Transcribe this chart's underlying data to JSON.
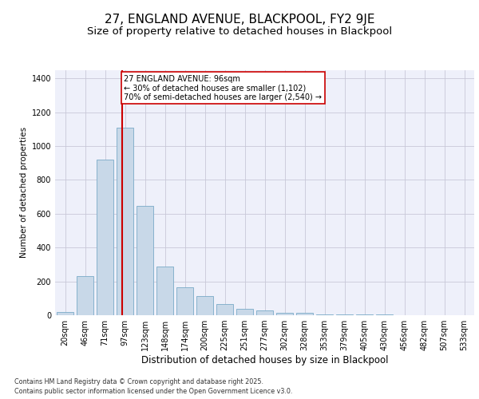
{
  "title": "27, ENGLAND AVENUE, BLACKPOOL, FY2 9JE",
  "subtitle": "Size of property relative to detached houses in Blackpool",
  "xlabel": "Distribution of detached houses by size in Blackpool",
  "ylabel": "Number of detached properties",
  "categories": [
    "20sqm",
    "46sqm",
    "71sqm",
    "97sqm",
    "123sqm",
    "148sqm",
    "174sqm",
    "200sqm",
    "225sqm",
    "251sqm",
    "277sqm",
    "302sqm",
    "328sqm",
    "353sqm",
    "379sqm",
    "405sqm",
    "430sqm",
    "456sqm",
    "482sqm",
    "507sqm",
    "533sqm"
  ],
  "bar_heights": [
    20,
    230,
    920,
    1110,
    645,
    290,
    165,
    115,
    65,
    40,
    30,
    15,
    12,
    5,
    5,
    5,
    5,
    0,
    0,
    0,
    0
  ],
  "bar_color": "#c8d8e8",
  "bar_edge_color": "#7aaac8",
  "annotation_box_color": "#cc0000",
  "vline_color": "#cc0000",
  "annotation_text": "27 ENGLAND AVENUE: 96sqm\n← 30% of detached houses are smaller (1,102)\n70% of semi-detached houses are larger (2,540) →",
  "ylim": [
    0,
    1450
  ],
  "yticks": [
    0,
    200,
    400,
    600,
    800,
    1000,
    1200,
    1400
  ],
  "grid_color": "#c8c8d8",
  "background_color": "#eef0fa",
  "footer": "Contains HM Land Registry data © Crown copyright and database right 2025.\nContains public sector information licensed under the Open Government Licence v3.0.",
  "title_fontsize": 11,
  "subtitle_fontsize": 9.5,
  "xlabel_fontsize": 8.5,
  "ylabel_fontsize": 7.5,
  "annot_fontsize": 7.0,
  "tick_fontsize": 7.0,
  "footer_fontsize": 5.8
}
